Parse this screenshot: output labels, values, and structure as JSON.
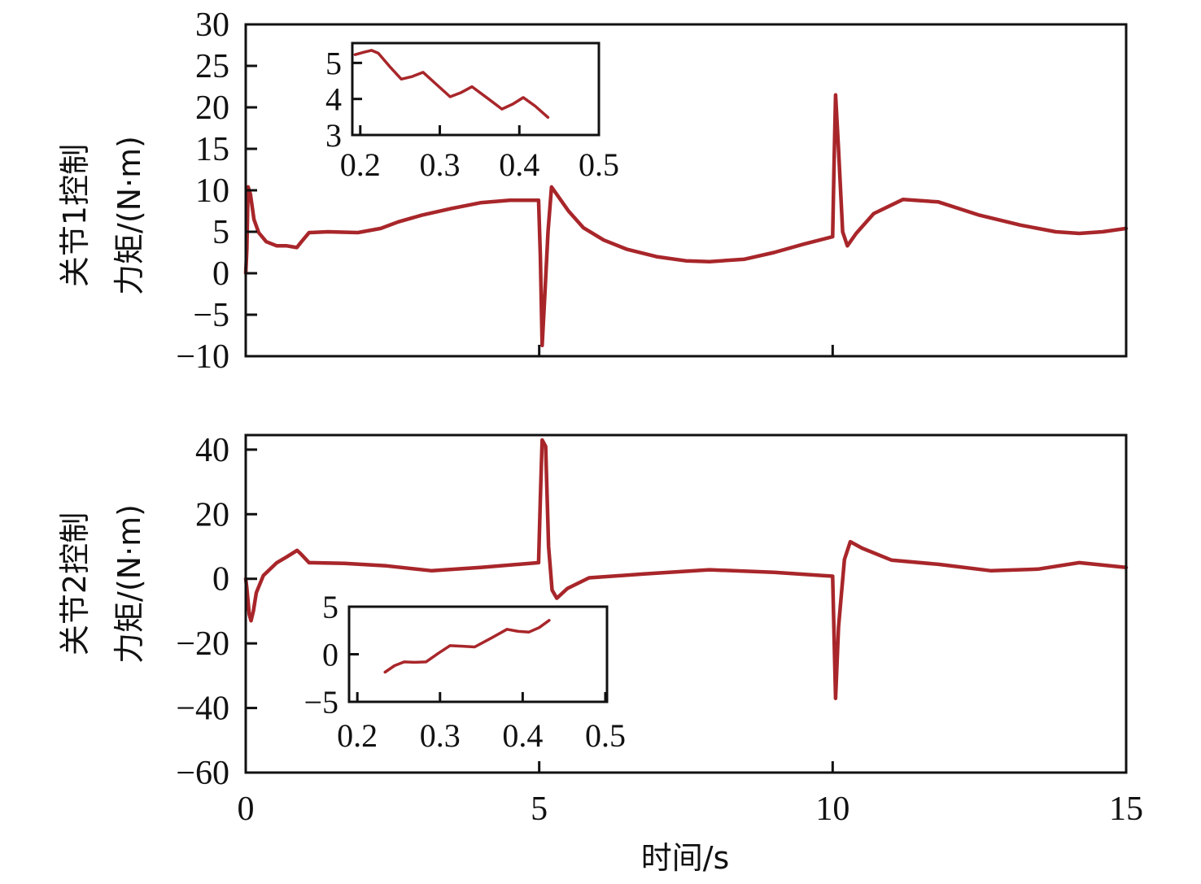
{
  "chart_data": [
    {
      "id": "joint1-main",
      "type": "line",
      "title": "",
      "xlabel": "",
      "ylabel_lines": [
        "关节1控制",
        "力矩/(N·m)"
      ],
      "xlim": [
        0,
        15
      ],
      "ylim": [
        -10,
        30
      ],
      "yticks": [
        30,
        25,
        20,
        15,
        10,
        5,
        0,
        -5,
        -10
      ],
      "ytick_labels": [
        "30",
        "25",
        "20",
        "15",
        "10",
        "5",
        "0",
        "−5",
        "−10"
      ],
      "xticks": [
        5,
        10
      ],
      "xtick_labels": [],
      "grid": false,
      "color": "#a8262a",
      "x": [
        0,
        0.02,
        0.04,
        0.08,
        0.14,
        0.22,
        0.35,
        0.53,
        0.7,
        0.87,
        0.95,
        1.08,
        1.4,
        1.91,
        2.3,
        2.6,
        3.0,
        3.5,
        4.0,
        4.5,
        4.99,
        5.02,
        5.05,
        5.1,
        5.15,
        5.21,
        5.3,
        5.5,
        5.75,
        6.1,
        6.49,
        7.0,
        7.5,
        7.9,
        8.5,
        9.0,
        9.5,
        10.0,
        10.02,
        10.05,
        10.1,
        10.17,
        10.25,
        10.4,
        10.7,
        11.2,
        11.8,
        12.5,
        13.2,
        13.8,
        14.2,
        14.6,
        15.0
      ],
      "y": [
        0,
        3,
        10.4,
        9.5,
        6.5,
        4.9,
        3.8,
        3.3,
        3.3,
        3.1,
        3.8,
        4.9,
        5.0,
        4.9,
        5.4,
        6.2,
        7.0,
        7.8,
        8.5,
        8.8,
        8.8,
        2,
        -8.7,
        -2,
        5,
        10.4,
        9.5,
        7.5,
        5.5,
        4.0,
        2.9,
        2.0,
        1.5,
        1.4,
        1.7,
        2.5,
        3.5,
        4.4,
        12,
        21.5,
        15,
        5,
        3.3,
        4.8,
        7.2,
        8.9,
        8.6,
        7.0,
        5.8,
        5.0,
        4.8,
        5.0,
        5.4
      ]
    },
    {
      "id": "joint1-inset",
      "type": "line",
      "xlim": [
        0.19,
        0.5
      ],
      "ylim": [
        3,
        5.55
      ],
      "xticks": [
        0.2,
        0.3,
        0.4,
        0.5
      ],
      "xtick_labels": [
        "0.2",
        "0.3",
        "0.4",
        "0.5"
      ],
      "yticks": [
        5,
        4,
        3
      ],
      "ytick_labels": [
        "5",
        "4",
        "3"
      ],
      "color": "#a8262a",
      "x": [
        0.1935,
        0.205,
        0.214,
        0.2226,
        0.237,
        0.2516,
        0.265,
        0.279,
        0.296,
        0.313,
        0.327,
        0.3405,
        0.36,
        0.378,
        0.392,
        0.405,
        0.42,
        0.436
      ],
      "y": [
        5.23,
        5.3,
        5.35,
        5.27,
        4.9,
        4.55,
        4.62,
        4.74,
        4.4,
        4.06,
        4.18,
        4.34,
        4.02,
        3.72,
        3.86,
        4.04,
        3.8,
        3.49
      ]
    },
    {
      "id": "joint2-main",
      "type": "line",
      "title": "",
      "xlabel": "时间/s",
      "ylabel_lines": [
        "关节2控制",
        "力矩/(N·m)"
      ],
      "xlim": [
        0,
        15
      ],
      "ylim": [
        -60,
        44.5
      ],
      "yticks": [
        40,
        20,
        0,
        -20,
        -40,
        -60
      ],
      "ytick_labels": [
        "40",
        "20",
        "0",
        "−20",
        "−40",
        "−60"
      ],
      "xticks": [
        0,
        5,
        10,
        15
      ],
      "xtick_labels": [
        "0",
        "5",
        "10",
        "15"
      ],
      "grid": false,
      "color": "#a8262a",
      "x": [
        0,
        0.02,
        0.06,
        0.09,
        0.13,
        0.18,
        0.3,
        0.53,
        0.7,
        0.875,
        0.95,
        1.08,
        1.68,
        2.4,
        3.17,
        4.0,
        4.99,
        5.02,
        5.05,
        5.11,
        5.16,
        5.22,
        5.3,
        5.48,
        5.85,
        6.78,
        7.9,
        9.0,
        10.0,
        10.02,
        10.05,
        10.1,
        10.2,
        10.3,
        10.5,
        11.0,
        11.8,
        12.7,
        13.5,
        14.2,
        15.0
      ],
      "y": [
        0,
        -3,
        -11,
        -13,
        -10,
        -4.3,
        1,
        5,
        6.8,
        8.8,
        7.5,
        5,
        4.8,
        4.0,
        2.5,
        3.5,
        5,
        25,
        43,
        41,
        10,
        -3.5,
        -6,
        -3,
        0.3,
        1.5,
        2.8,
        2.0,
        0.8,
        -15,
        -37,
        -15,
        6,
        11.5,
        9.5,
        5.8,
        4.5,
        2.5,
        3.0,
        5.0,
        3.5
      ]
    },
    {
      "id": "joint2-inset",
      "type": "line",
      "xlim": [
        0.19,
        0.502
      ],
      "ylim": [
        -5,
        5
      ],
      "xticks": [
        0.2,
        0.3,
        0.4,
        0.5
      ],
      "xtick_labels": [
        "0.2",
        "0.3",
        "0.4",
        "0.5"
      ],
      "yticks": [
        5,
        0,
        -5
      ],
      "ytick_labels": [
        "5",
        "0",
        "−5"
      ],
      "color": "#a8262a",
      "x": [
        0.2335,
        0.245,
        0.2566,
        0.27,
        0.283,
        0.298,
        0.312,
        0.327,
        0.342,
        0.362,
        0.381,
        0.395,
        0.4076,
        0.42,
        0.432
      ],
      "y": [
        -1.88,
        -1.2,
        -0.8,
        -0.85,
        -0.8,
        0.1,
        0.91,
        0.85,
        0.77,
        1.7,
        2.62,
        2.4,
        2.33,
        2.8,
        3.56
      ]
    }
  ]
}
